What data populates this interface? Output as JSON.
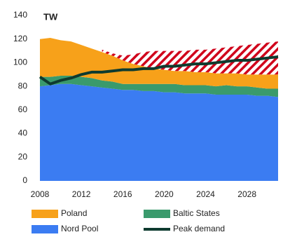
{
  "chart_data": {
    "type": "area",
    "unit_label": "TW",
    "x": [
      2008,
      2009,
      2010,
      2011,
      2012,
      2013,
      2014,
      2015,
      2016,
      2017,
      2018,
      2019,
      2020,
      2021,
      2022,
      2023,
      2024,
      2025,
      2026,
      2027,
      2028,
      2029,
      2030,
      2031
    ],
    "xlim": [
      2008,
      2031
    ],
    "xticks": [
      2008,
      2012,
      2016,
      2020,
      2024,
      2028
    ],
    "ylim": [
      0,
      140
    ],
    "yticks": [
      0,
      20,
      40,
      60,
      80,
      100,
      120,
      140
    ],
    "series": [
      {
        "name": "Nord Pool",
        "color": "#3b7cf2",
        "values": [
          80,
          81,
          82,
          82,
          81,
          80,
          79,
          78,
          77,
          77,
          76,
          76,
          75,
          75,
          74,
          74,
          74,
          73,
          73,
          73,
          73,
          72,
          72,
          71
        ]
      },
      {
        "name": "Baltic States",
        "color": "#3a9a6c",
        "values": [
          8,
          7,
          7,
          7,
          7,
          7,
          6,
          6,
          5,
          5,
          6,
          6,
          7,
          7,
          7,
          7,
          7,
          7,
          8,
          7,
          7,
          7,
          6,
          7
        ]
      },
      {
        "name": "Poland",
        "color": "#f7a11a",
        "values": [
          32,
          33,
          30,
          29,
          27,
          25,
          24,
          22,
          20,
          17,
          15,
          13,
          12,
          11,
          12,
          11,
          11,
          11,
          10,
          11,
          10,
          11,
          12,
          12
        ]
      },
      {
        "color": "#d0021b",
        "hatch": true,
        "values": [
          null,
          null,
          null,
          null,
          null,
          null,
          2,
          2,
          4,
          8,
          12,
          15,
          16,
          17,
          17,
          19,
          19,
          21,
          22,
          23,
          25,
          26,
          27,
          28
        ]
      },
      {
        "name": "Peak demand",
        "type": "line",
        "color": "#0e3b2f",
        "values": [
          88,
          82,
          85,
          87,
          90,
          92,
          92,
          93,
          94,
          94,
          95,
          95,
          97,
          97,
          98,
          99,
          99,
          100,
          101,
          102,
          102,
          103,
          104,
          105
        ]
      }
    ]
  }
}
